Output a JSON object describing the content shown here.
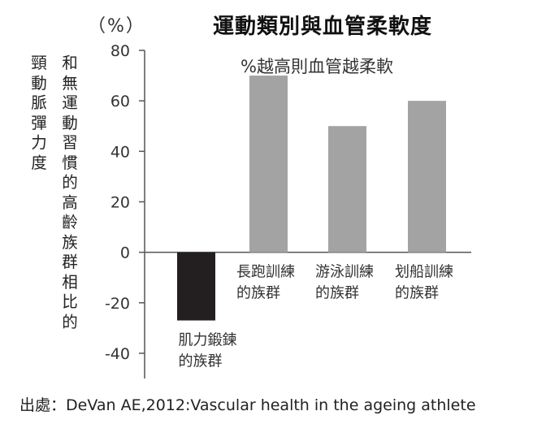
{
  "chart_data": {
    "type": "bar",
    "title": "運動類別與血管柔軟度",
    "unit_label": "（%）",
    "subtitle": "%越高則血管越柔軟",
    "ylabel_left": "頸動脈彈力度",
    "ylabel_right": "和無運動習慣的高齡族群相比的",
    "ylim": [
      -50,
      80
    ],
    "yticks": [
      80,
      60,
      40,
      20,
      0,
      -20,
      -40
    ],
    "ytick_labels": [
      "80",
      "60",
      "40",
      "20",
      "0",
      "-20",
      "-40"
    ],
    "categories": [
      [
        "肌力鍛鍊",
        "的族群"
      ],
      [
        "長跑訓練",
        "的族群"
      ],
      [
        "游泳訓練",
        "的族群"
      ],
      [
        "划船訓練",
        "的族群"
      ]
    ],
    "values": [
      -27,
      70,
      50,
      60
    ],
    "bar_colors": [
      "#231f20",
      "#a3a3a3",
      "#a3a3a3",
      "#a3a3a3"
    ],
    "grid": false,
    "source": "出處：DeVan AE,2012:Vascular health in the ageing athlete"
  }
}
